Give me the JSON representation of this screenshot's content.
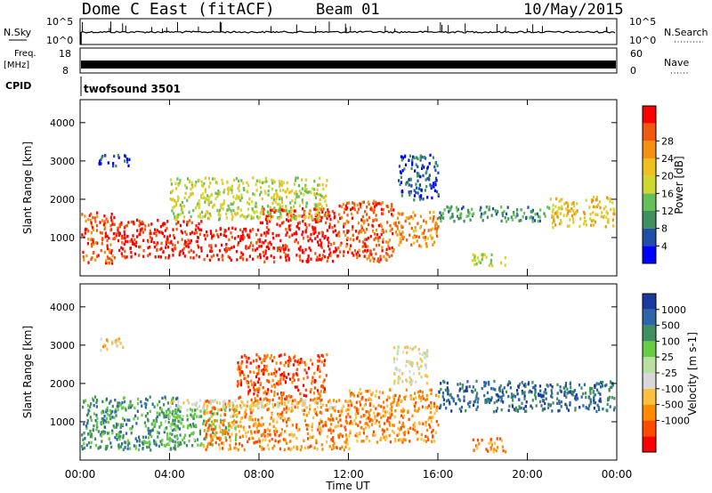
{
  "header": {
    "station": "Dome C East (fitACF)",
    "beam": "Beam 01",
    "date": "10/May/2015"
  },
  "top_panels": {
    "nsky": {
      "label": "N.Sky",
      "tick_top": "10^5",
      "tick_bottom": "10^0",
      "right_tick_top": "10^5",
      "right_tick_bottom": "10^0",
      "right_label": "N.Search"
    },
    "freq": {
      "label_line1": "Freq.",
      "label_line2": "[MHz]",
      "tick_top": "18",
      "tick_bottom": "8",
      "right_tick_top": "60",
      "right_tick_bottom": "0",
      "right_label": "Nave"
    },
    "cpid": {
      "label": "CPID",
      "program": "twofsound 3501"
    }
  },
  "colors": {
    "power": [
      "#0000ff",
      "#1f4fa8",
      "#3f8f5f",
      "#66c05a",
      "#cfd832",
      "#f0c020",
      "#f59010",
      "#f05a10",
      "#ff0000"
    ],
    "velocity": [
      "#ff0000",
      "#ff4a00",
      "#ff8a00",
      "#ffc040",
      "#d8d8d8",
      "#b8e0a0",
      "#66cc44",
      "#3f8f5f",
      "#2a66a8",
      "#1a3aa0"
    ]
  },
  "chart_data": [
    {
      "type": "heatmap",
      "panel": "power",
      "ylabel": "Slant Range [km]",
      "ylim": [
        0,
        4600
      ],
      "yticks": [
        "1000",
        "2000",
        "3000",
        "4000"
      ],
      "xlim": [
        "00:00",
        "24:00"
      ],
      "colorbar_label": "Power [dB]",
      "colorbar_ticks": [
        "4",
        "8",
        "12",
        "16",
        "20",
        "24",
        "28"
      ],
      "regions": [
        {
          "t0": 0.0,
          "t1": 1.5,
          "r0": 350,
          "r1": 1700,
          "level": 7
        },
        {
          "t0": 1.5,
          "t1": 5.5,
          "r0": 500,
          "r1": 1500,
          "level": 8
        },
        {
          "t0": 5.5,
          "t1": 8.0,
          "r0": 450,
          "r1": 1300,
          "level": 8
        },
        {
          "t0": 8.0,
          "t1": 11.5,
          "r0": 400,
          "r1": 1800,
          "level": 8
        },
        {
          "t0": 11.5,
          "t1": 14.0,
          "r0": 400,
          "r1": 2000,
          "level": 7
        },
        {
          "t0": 14.0,
          "t1": 16.0,
          "r0": 800,
          "r1": 1700,
          "level": 6
        },
        {
          "t0": 4.0,
          "t1": 11.0,
          "r0": 1500,
          "r1": 2600,
          "level": 4
        },
        {
          "t0": 16.0,
          "t1": 21.0,
          "r0": 1450,
          "r1": 1850,
          "level": 2
        },
        {
          "t0": 21.0,
          "t1": 24.0,
          "r0": 1300,
          "r1": 2100,
          "level": 5
        },
        {
          "t0": 17.5,
          "t1": 19.0,
          "r0": 300,
          "r1": 600,
          "level": 4
        },
        {
          "t0": 14.2,
          "t1": 16.0,
          "r0": 2000,
          "r1": 3200,
          "level": 1
        },
        {
          "t0": 0.8,
          "t1": 2.2,
          "r0": 2900,
          "r1": 3200,
          "level": 1
        }
      ]
    },
    {
      "type": "heatmap",
      "panel": "velocity",
      "ylabel": "Slant Range [km]",
      "ylim": [
        0,
        4600
      ],
      "yticks": [
        "1000",
        "2000",
        "3000",
        "4000"
      ],
      "xlabel": "Time UT",
      "xticks": [
        "00:00",
        "04:00",
        "08:00",
        "12:00",
        "16:00",
        "20:00",
        "00:00"
      ],
      "colorbar_label": "Velocity [m s-1]",
      "colorbar_ticks": [
        "1000",
        "500",
        "100",
        "25",
        "-25",
        "-100",
        "-500",
        "-1000"
      ],
      "regions": [
        {
          "t0": 0.0,
          "t1": 4.5,
          "r0": 300,
          "r1": 1700,
          "level": 7
        },
        {
          "t0": 3.5,
          "t1": 7.0,
          "r0": 400,
          "r1": 1400,
          "level": 6
        },
        {
          "t0": 5.5,
          "t1": 12.0,
          "r0": 300,
          "r1": 1600,
          "level": 2
        },
        {
          "t0": 12.0,
          "t1": 16.0,
          "r0": 500,
          "r1": 1900,
          "level": 2
        },
        {
          "t0": 4.0,
          "t1": 12.0,
          "r0": 1400,
          "r1": 1600,
          "level": 4
        },
        {
          "t0": 7.0,
          "t1": 11.0,
          "r0": 1600,
          "r1": 2800,
          "level": 1
        },
        {
          "t0": 16.0,
          "t1": 24.0,
          "r0": 1300,
          "r1": 2100,
          "level": 8
        },
        {
          "t0": 17.5,
          "t1": 19.0,
          "r0": 250,
          "r1": 600,
          "level": 2
        },
        {
          "t0": 14.0,
          "t1": 15.5,
          "r0": 2000,
          "r1": 3000,
          "level": 4
        },
        {
          "t0": 0.8,
          "t1": 2.0,
          "r0": 2900,
          "r1": 3200,
          "level": 3
        }
      ]
    }
  ]
}
